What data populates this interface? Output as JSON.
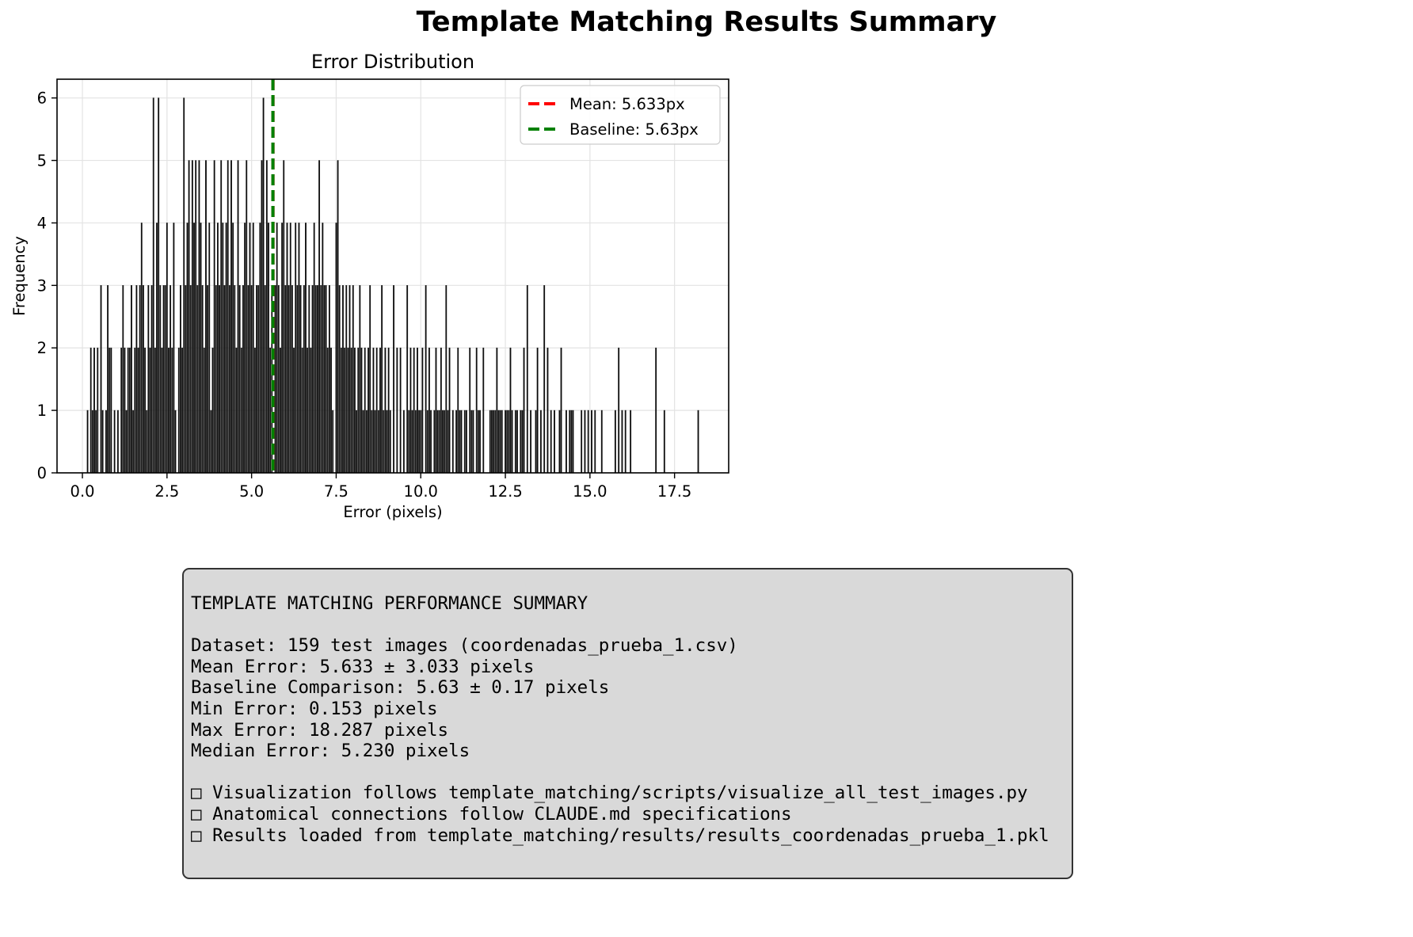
{
  "figure": {
    "suptitle": "Template Matching Results Summary"
  },
  "chart_data": {
    "type": "histogram",
    "title": "Error Distribution",
    "xlabel": "Error (pixels)",
    "ylabel": "Frequency",
    "xlim": [
      -0.75,
      19.1
    ],
    "ylim": [
      0,
      6.3
    ],
    "xticks": [
      "0.0",
      "2.5",
      "5.0",
      "7.5",
      "10.0",
      "12.5",
      "15.0",
      "17.5"
    ],
    "yticks": [
      "0",
      "1",
      "2",
      "3",
      "4",
      "5",
      "6"
    ],
    "grid": true,
    "legend_position": "top-right",
    "bar_color": "#000000",
    "bin_width": 0.03,
    "legend": [
      {
        "label": "Mean: 5.633px",
        "color": "#ff0000",
        "style": "dashed"
      },
      {
        "label": "Baseline: 5.63px",
        "color": "#008000",
        "style": "dashed"
      }
    ],
    "vlines": [
      {
        "x": 5.633,
        "color": "#ff0000",
        "label": "Mean: 5.633px"
      },
      {
        "x": 5.63,
        "color": "#008000",
        "label": "Baseline: 5.63px"
      }
    ],
    "bars": [
      {
        "x": 0.153,
        "count": 1
      },
      {
        "x": 0.25,
        "count": 2
      },
      {
        "x": 0.3,
        "count": 1
      },
      {
        "x": 0.35,
        "count": 2
      },
      {
        "x": 0.4,
        "count": 1
      },
      {
        "x": 0.45,
        "count": 2
      },
      {
        "x": 0.55,
        "count": 3
      },
      {
        "x": 0.6,
        "count": 1
      },
      {
        "x": 0.7,
        "count": 1
      },
      {
        "x": 0.75,
        "count": 3
      },
      {
        "x": 0.8,
        "count": 2
      },
      {
        "x": 0.85,
        "count": 2
      },
      {
        "x": 0.95,
        "count": 1
      },
      {
        "x": 1.05,
        "count": 1
      },
      {
        "x": 1.15,
        "count": 2
      },
      {
        "x": 1.2,
        "count": 3
      },
      {
        "x": 1.25,
        "count": 2
      },
      {
        "x": 1.3,
        "count": 1
      },
      {
        "x": 1.35,
        "count": 2
      },
      {
        "x": 1.4,
        "count": 2
      },
      {
        "x": 1.45,
        "count": 3
      },
      {
        "x": 1.5,
        "count": 1
      },
      {
        "x": 1.55,
        "count": 2
      },
      {
        "x": 1.6,
        "count": 3
      },
      {
        "x": 1.65,
        "count": 2
      },
      {
        "x": 1.7,
        "count": 3
      },
      {
        "x": 1.75,
        "count": 4
      },
      {
        "x": 1.8,
        "count": 3
      },
      {
        "x": 1.85,
        "count": 2
      },
      {
        "x": 1.9,
        "count": 1
      },
      {
        "x": 1.95,
        "count": 3
      },
      {
        "x": 2.0,
        "count": 2
      },
      {
        "x": 2.05,
        "count": 3
      },
      {
        "x": 2.1,
        "count": 6
      },
      {
        "x": 2.15,
        "count": 2
      },
      {
        "x": 2.2,
        "count": 4
      },
      {
        "x": 2.25,
        "count": 6
      },
      {
        "x": 2.3,
        "count": 3
      },
      {
        "x": 2.35,
        "count": 2
      },
      {
        "x": 2.4,
        "count": 3
      },
      {
        "x": 2.45,
        "count": 3
      },
      {
        "x": 2.5,
        "count": 4
      },
      {
        "x": 2.55,
        "count": 2
      },
      {
        "x": 2.6,
        "count": 3
      },
      {
        "x": 2.65,
        "count": 2
      },
      {
        "x": 2.7,
        "count": 4
      },
      {
        "x": 2.75,
        "count": 1
      },
      {
        "x": 2.85,
        "count": 2
      },
      {
        "x": 2.9,
        "count": 3
      },
      {
        "x": 2.95,
        "count": 2
      },
      {
        "x": 3.0,
        "count": 6
      },
      {
        "x": 3.05,
        "count": 3
      },
      {
        "x": 3.1,
        "count": 4
      },
      {
        "x": 3.15,
        "count": 5
      },
      {
        "x": 3.2,
        "count": 3
      },
      {
        "x": 3.25,
        "count": 5
      },
      {
        "x": 3.3,
        "count": 4
      },
      {
        "x": 3.35,
        "count": 5
      },
      {
        "x": 3.4,
        "count": 3
      },
      {
        "x": 3.45,
        "count": 5
      },
      {
        "x": 3.5,
        "count": 4
      },
      {
        "x": 3.55,
        "count": 3
      },
      {
        "x": 3.6,
        "count": 2
      },
      {
        "x": 3.65,
        "count": 5
      },
      {
        "x": 3.7,
        "count": 3
      },
      {
        "x": 3.75,
        "count": 4
      },
      {
        "x": 3.8,
        "count": 1
      },
      {
        "x": 3.85,
        "count": 2
      },
      {
        "x": 3.9,
        "count": 5
      },
      {
        "x": 3.95,
        "count": 3
      },
      {
        "x": 4.0,
        "count": 4
      },
      {
        "x": 4.05,
        "count": 3
      },
      {
        "x": 4.1,
        "count": 5
      },
      {
        "x": 4.15,
        "count": 4
      },
      {
        "x": 4.2,
        "count": 3
      },
      {
        "x": 4.25,
        "count": 4
      },
      {
        "x": 4.3,
        "count": 5
      },
      {
        "x": 4.35,
        "count": 3
      },
      {
        "x": 4.4,
        "count": 5
      },
      {
        "x": 4.45,
        "count": 4
      },
      {
        "x": 4.5,
        "count": 3
      },
      {
        "x": 4.55,
        "count": 2
      },
      {
        "x": 4.6,
        "count": 5
      },
      {
        "x": 4.65,
        "count": 3
      },
      {
        "x": 4.7,
        "count": 2
      },
      {
        "x": 4.75,
        "count": 3
      },
      {
        "x": 4.8,
        "count": 4
      },
      {
        "x": 4.85,
        "count": 5
      },
      {
        "x": 4.9,
        "count": 3
      },
      {
        "x": 4.95,
        "count": 4
      },
      {
        "x": 5.0,
        "count": 3
      },
      {
        "x": 5.05,
        "count": 4
      },
      {
        "x": 5.1,
        "count": 2
      },
      {
        "x": 5.15,
        "count": 3
      },
      {
        "x": 5.2,
        "count": 3
      },
      {
        "x": 5.25,
        "count": 4
      },
      {
        "x": 5.3,
        "count": 5
      },
      {
        "x": 5.35,
        "count": 6
      },
      {
        "x": 5.4,
        "count": 3
      },
      {
        "x": 5.45,
        "count": 5
      },
      {
        "x": 5.5,
        "count": 4
      },
      {
        "x": 5.55,
        "count": 2
      },
      {
        "x": 5.6,
        "count": 3
      },
      {
        "x": 5.7,
        "count": 3
      },
      {
        "x": 5.75,
        "count": 4
      },
      {
        "x": 5.8,
        "count": 3
      },
      {
        "x": 5.85,
        "count": 2
      },
      {
        "x": 5.9,
        "count": 4
      },
      {
        "x": 5.95,
        "count": 5
      },
      {
        "x": 6.0,
        "count": 3
      },
      {
        "x": 6.05,
        "count": 4
      },
      {
        "x": 6.1,
        "count": 3
      },
      {
        "x": 6.15,
        "count": 4
      },
      {
        "x": 6.2,
        "count": 3
      },
      {
        "x": 6.25,
        "count": 2
      },
      {
        "x": 6.3,
        "count": 4
      },
      {
        "x": 6.35,
        "count": 3
      },
      {
        "x": 6.4,
        "count": 4
      },
      {
        "x": 6.45,
        "count": 3
      },
      {
        "x": 6.5,
        "count": 2
      },
      {
        "x": 6.55,
        "count": 3
      },
      {
        "x": 6.6,
        "count": 4
      },
      {
        "x": 6.65,
        "count": 2
      },
      {
        "x": 6.7,
        "count": 3
      },
      {
        "x": 6.75,
        "count": 2
      },
      {
        "x": 6.8,
        "count": 3
      },
      {
        "x": 6.85,
        "count": 4
      },
      {
        "x": 6.9,
        "count": 3
      },
      {
        "x": 6.95,
        "count": 3
      },
      {
        "x": 7.0,
        "count": 5
      },
      {
        "x": 7.05,
        "count": 3
      },
      {
        "x": 7.1,
        "count": 4
      },
      {
        "x": 7.15,
        "count": 3
      },
      {
        "x": 7.2,
        "count": 3
      },
      {
        "x": 7.25,
        "count": 2
      },
      {
        "x": 7.3,
        "count": 3
      },
      {
        "x": 7.35,
        "count": 2
      },
      {
        "x": 7.4,
        "count": 1
      },
      {
        "x": 7.5,
        "count": 4
      },
      {
        "x": 7.55,
        "count": 5
      },
      {
        "x": 7.6,
        "count": 3
      },
      {
        "x": 7.65,
        "count": 2
      },
      {
        "x": 7.7,
        "count": 3
      },
      {
        "x": 7.75,
        "count": 2
      },
      {
        "x": 7.8,
        "count": 3
      },
      {
        "x": 7.85,
        "count": 2
      },
      {
        "x": 7.9,
        "count": 3
      },
      {
        "x": 7.95,
        "count": 2
      },
      {
        "x": 8.0,
        "count": 3
      },
      {
        "x": 8.05,
        "count": 2
      },
      {
        "x": 8.1,
        "count": 1
      },
      {
        "x": 8.15,
        "count": 2
      },
      {
        "x": 8.2,
        "count": 3
      },
      {
        "x": 8.25,
        "count": 2
      },
      {
        "x": 8.3,
        "count": 1
      },
      {
        "x": 8.35,
        "count": 2
      },
      {
        "x": 8.4,
        "count": 1
      },
      {
        "x": 8.45,
        "count": 2
      },
      {
        "x": 8.5,
        "count": 3
      },
      {
        "x": 8.55,
        "count": 1
      },
      {
        "x": 8.6,
        "count": 2
      },
      {
        "x": 8.65,
        "count": 1
      },
      {
        "x": 8.7,
        "count": 2
      },
      {
        "x": 8.75,
        "count": 1
      },
      {
        "x": 8.8,
        "count": 2
      },
      {
        "x": 8.85,
        "count": 3
      },
      {
        "x": 8.9,
        "count": 1
      },
      {
        "x": 8.95,
        "count": 2
      },
      {
        "x": 9.0,
        "count": 1
      },
      {
        "x": 9.05,
        "count": 2
      },
      {
        "x": 9.1,
        "count": 1
      },
      {
        "x": 9.2,
        "count": 3
      },
      {
        "x": 9.3,
        "count": 2
      },
      {
        "x": 9.4,
        "count": 2
      },
      {
        "x": 9.5,
        "count": 1
      },
      {
        "x": 9.6,
        "count": 3
      },
      {
        "x": 9.65,
        "count": 1
      },
      {
        "x": 9.7,
        "count": 2
      },
      {
        "x": 9.75,
        "count": 1
      },
      {
        "x": 9.8,
        "count": 2
      },
      {
        "x": 9.85,
        "count": 1
      },
      {
        "x": 9.9,
        "count": 2
      },
      {
        "x": 9.95,
        "count": 1
      },
      {
        "x": 10.0,
        "count": 1
      },
      {
        "x": 10.05,
        "count": 2
      },
      {
        "x": 10.15,
        "count": 3
      },
      {
        "x": 10.2,
        "count": 1
      },
      {
        "x": 10.25,
        "count": 2
      },
      {
        "x": 10.3,
        "count": 1
      },
      {
        "x": 10.4,
        "count": 1
      },
      {
        "x": 10.45,
        "count": 2
      },
      {
        "x": 10.5,
        "count": 1
      },
      {
        "x": 10.55,
        "count": 1
      },
      {
        "x": 10.6,
        "count": 2
      },
      {
        "x": 10.65,
        "count": 1
      },
      {
        "x": 10.7,
        "count": 1
      },
      {
        "x": 10.75,
        "count": 3
      },
      {
        "x": 10.8,
        "count": 1
      },
      {
        "x": 10.85,
        "count": 2
      },
      {
        "x": 10.95,
        "count": 1
      },
      {
        "x": 11.05,
        "count": 1
      },
      {
        "x": 11.1,
        "count": 2
      },
      {
        "x": 11.15,
        "count": 1
      },
      {
        "x": 11.2,
        "count": 1
      },
      {
        "x": 11.3,
        "count": 1
      },
      {
        "x": 11.35,
        "count": 1
      },
      {
        "x": 11.45,
        "count": 2
      },
      {
        "x": 11.5,
        "count": 1
      },
      {
        "x": 11.55,
        "count": 1
      },
      {
        "x": 11.65,
        "count": 2
      },
      {
        "x": 11.7,
        "count": 1
      },
      {
        "x": 11.75,
        "count": 1
      },
      {
        "x": 11.85,
        "count": 2
      },
      {
        "x": 12.05,
        "count": 1
      },
      {
        "x": 12.1,
        "count": 1
      },
      {
        "x": 12.15,
        "count": 1
      },
      {
        "x": 12.2,
        "count": 1
      },
      {
        "x": 12.25,
        "count": 2
      },
      {
        "x": 12.3,
        "count": 1
      },
      {
        "x": 12.35,
        "count": 1
      },
      {
        "x": 12.4,
        "count": 1
      },
      {
        "x": 12.5,
        "count": 1
      },
      {
        "x": 12.55,
        "count": 1
      },
      {
        "x": 12.6,
        "count": 1
      },
      {
        "x": 12.65,
        "count": 2
      },
      {
        "x": 12.7,
        "count": 1
      },
      {
        "x": 12.8,
        "count": 1
      },
      {
        "x": 12.85,
        "count": 1
      },
      {
        "x": 12.95,
        "count": 1
      },
      {
        "x": 13.0,
        "count": 1
      },
      {
        "x": 13.05,
        "count": 2
      },
      {
        "x": 13.15,
        "count": 3
      },
      {
        "x": 13.25,
        "count": 1
      },
      {
        "x": 13.4,
        "count": 1
      },
      {
        "x": 13.45,
        "count": 2
      },
      {
        "x": 13.55,
        "count": 1
      },
      {
        "x": 13.65,
        "count": 3
      },
      {
        "x": 13.75,
        "count": 2
      },
      {
        "x": 13.85,
        "count": 1
      },
      {
        "x": 13.95,
        "count": 1
      },
      {
        "x": 14.1,
        "count": 1
      },
      {
        "x": 14.15,
        "count": 2
      },
      {
        "x": 14.3,
        "count": 1
      },
      {
        "x": 14.4,
        "count": 1
      },
      {
        "x": 14.45,
        "count": 1
      },
      {
        "x": 14.5,
        "count": 1
      },
      {
        "x": 14.75,
        "count": 1
      },
      {
        "x": 14.85,
        "count": 1
      },
      {
        "x": 14.95,
        "count": 1
      },
      {
        "x": 15.05,
        "count": 1
      },
      {
        "x": 15.15,
        "count": 1
      },
      {
        "x": 15.35,
        "count": 1
      },
      {
        "x": 15.75,
        "count": 1
      },
      {
        "x": 15.85,
        "count": 2
      },
      {
        "x": 15.95,
        "count": 1
      },
      {
        "x": 16.05,
        "count": 1
      },
      {
        "x": 16.2,
        "count": 1
      },
      {
        "x": 16.95,
        "count": 2
      },
      {
        "x": 17.2,
        "count": 1
      },
      {
        "x": 18.2,
        "count": 1
      }
    ]
  },
  "summary": {
    "lines": [
      "TEMPLATE MATCHING PERFORMANCE SUMMARY",
      "",
      "Dataset: 159 test images (coordenadas_prueba_1.csv)",
      "Mean Error: 5.633 ± 3.033 pixels",
      "Baseline Comparison: 5.63 ± 0.17 pixels",
      "Min Error: 0.153 pixels",
      "Max Error: 18.287 pixels",
      "Median Error: 5.230 pixels",
      "",
      "□ Visualization follows template_matching/scripts/visualize_all_test_images.py",
      "□ Anatomical connections follow CLAUDE.md specifications",
      "□ Results loaded from template_matching/results/results_coordenadas_prueba_1.pkl"
    ]
  }
}
